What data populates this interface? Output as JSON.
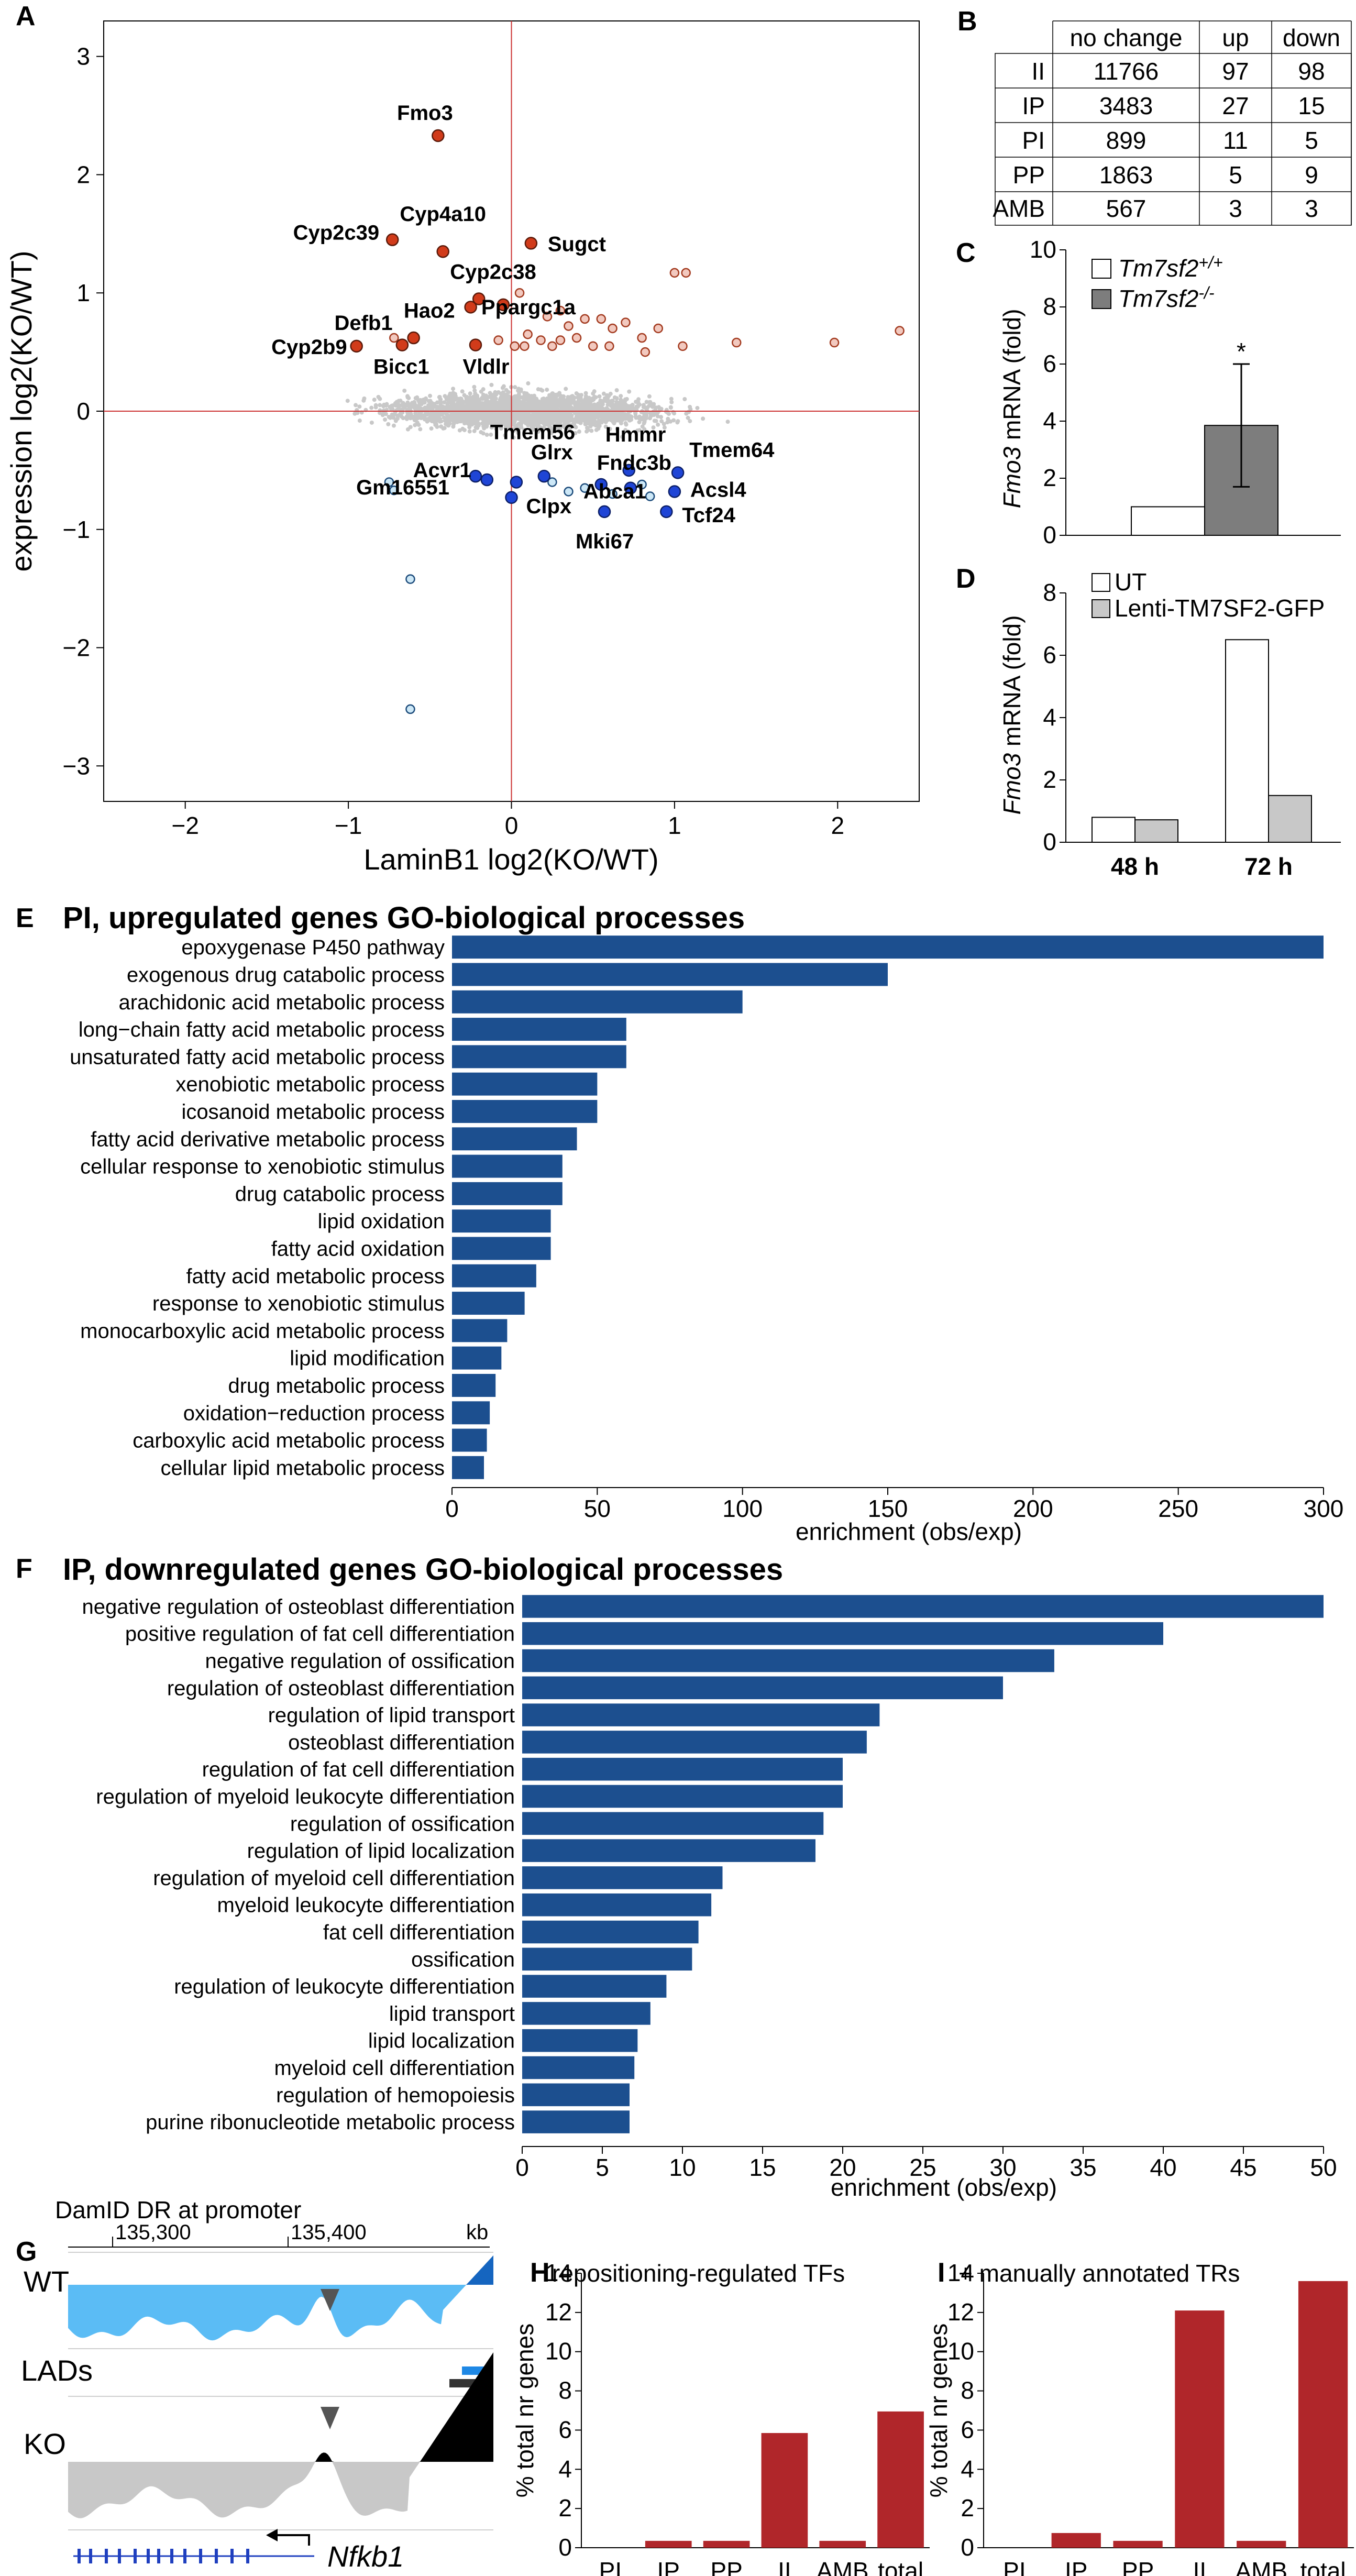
{
  "panels": {
    "A": "A",
    "B": "B",
    "C": "C",
    "D": "D",
    "E": "E",
    "F": "F",
    "G": "G",
    "H": "H",
    "I": "I"
  },
  "colors": {
    "up": "#d13b1a",
    "down": "#1f45d6",
    "background_points": "#c8c8c8",
    "axis_line": "#cc3333",
    "bar": "#1c4f8f",
    "ko_bar": "#7d7d7d",
    "lenti_bar": "#c8c8c8",
    "tr_bar": "#b0262a",
    "wt_track": "#5bbcf5",
    "ko_track": "#c8c8c8"
  },
  "chart_data": [
    {
      "id": "A",
      "type": "scatter",
      "xlabel": "LaminB1 log2(KO/WT)",
      "ylabel": "expression log2(KO/WT)",
      "xlim": [
        -2.5,
        2.5
      ],
      "ylim": [
        -3.3,
        3.3
      ],
      "xticks": [
        "−2",
        "−1",
        "0",
        "1",
        "2"
      ],
      "yticks": [
        "3",
        "2",
        "1",
        "0",
        "−1",
        "−2",
        "−3"
      ],
      "labeled_up": [
        {
          "gene": "Fmo3",
          "x": -0.45,
          "y": 2.33
        },
        {
          "gene": "Cyp2c39",
          "x": -0.73,
          "y": 1.45
        },
        {
          "gene": "Cyp4a10",
          "x": -0.42,
          "y": 1.35
        },
        {
          "gene": "Sugct",
          "x": 0.12,
          "y": 1.42
        },
        {
          "gene": "Cyp2c38",
          "x": -0.2,
          "y": 0.95
        },
        {
          "gene": "Hao2",
          "x": -0.25,
          "y": 0.88
        },
        {
          "gene": "Ppargc1a",
          "x": -0.05,
          "y": 0.9
        },
        {
          "gene": "Defb1",
          "x": -0.6,
          "y": 0.62
        },
        {
          "gene": "Cyp2b9",
          "x": -0.95,
          "y": 0.55
        },
        {
          "gene": "Bicc1",
          "x": -0.67,
          "y": 0.56
        },
        {
          "gene": "Vldlr",
          "x": -0.22,
          "y": 0.56
        }
      ],
      "other_up": [
        [
          0.05,
          1.0
        ],
        [
          0.3,
          0.85
        ],
        [
          0.22,
          0.8
        ],
        [
          0.35,
          0.72
        ],
        [
          0.45,
          0.78
        ],
        [
          0.55,
          0.78
        ],
        [
          0.62,
          0.7
        ],
        [
          0.7,
          0.75
        ],
        [
          0.8,
          0.62
        ],
        [
          0.9,
          0.7
        ],
        [
          1.0,
          1.17
        ],
        [
          1.07,
          1.17
        ],
        [
          0.18,
          0.6
        ],
        [
          0.25,
          0.55
        ],
        [
          0.5,
          0.55
        ],
        [
          0.08,
          0.55
        ],
        [
          0.1,
          0.65
        ],
        [
          0.4,
          0.62
        ],
        [
          0.6,
          0.55
        ],
        [
          0.82,
          0.5
        ],
        [
          1.05,
          0.55
        ],
        [
          1.38,
          0.58
        ],
        [
          1.98,
          0.58
        ],
        [
          2.38,
          0.68
        ],
        [
          -0.08,
          0.6
        ],
        [
          0.02,
          0.55
        ],
        [
          0.3,
          0.6
        ],
        [
          -0.72,
          0.62
        ]
      ],
      "labeled_down": [
        {
          "gene": "Tmem56",
          "x": 0.03,
          "y": -0.6
        },
        {
          "gene": "Hmmr",
          "x": 0.72,
          "y": -0.5
        },
        {
          "gene": "Glrx",
          "x": 0.2,
          "y": -0.55
        },
        {
          "gene": "Fndc3b",
          "x": 0.55,
          "y": -0.62
        },
        {
          "gene": "Tmem64",
          "x": 1.02,
          "y": -0.52
        },
        {
          "gene": "Abca1",
          "x": 0.73,
          "y": -0.65
        },
        {
          "gene": "Acvr1",
          "x": -0.15,
          "y": -0.58
        },
        {
          "gene": "Clpx",
          "x": 0.0,
          "y": -0.73
        },
        {
          "gene": "Acsl4",
          "x": 1.0,
          "y": -0.68
        },
        {
          "gene": "Gm16551",
          "x": -0.22,
          "y": -0.55
        },
        {
          "gene": "Mki67",
          "x": 0.57,
          "y": -0.85
        },
        {
          "gene": "Tcf24",
          "x": 0.95,
          "y": -0.85
        }
      ],
      "other_down": [
        [
          0.25,
          -0.6
        ],
        [
          0.35,
          -0.68
        ],
        [
          0.45,
          -0.65
        ],
        [
          0.8,
          -0.62
        ],
        [
          0.85,
          -0.72
        ],
        [
          0.62,
          -0.7
        ],
        [
          -0.75,
          -0.6
        ],
        [
          -0.72,
          -0.67
        ],
        [
          -0.62,
          -1.42
        ],
        [
          -0.62,
          -2.52
        ]
      ]
    },
    {
      "id": "C",
      "type": "bar",
      "categories": [
        "Tm7sf2+/+",
        "Tm7sf2-/-"
      ],
      "legend": [
        {
          "base": "Tm7sf2",
          "sup": "+/+"
        },
        {
          "base": "Tm7sf2",
          "sup": "-/-"
        }
      ],
      "values": [
        1.0,
        3.85
      ],
      "error": [
        0,
        2.15
      ],
      "significance": "*",
      "ylabel_gene": "Fmo3",
      "ylabel_rest": " mRNA (fold)",
      "ylim": [
        0,
        10
      ],
      "yticks": [
        "0",
        "2",
        "4",
        "6",
        "8",
        "10"
      ]
    },
    {
      "id": "D",
      "type": "bar",
      "categories": [
        "48 h",
        "72 h"
      ],
      "series": [
        {
          "name": "UT",
          "values": [
            0.8,
            6.5
          ]
        },
        {
          "name": "Lenti-TM7SF2-GFP",
          "values": [
            0.72,
            1.5
          ]
        }
      ],
      "ylabel_gene": "Fmo3",
      "ylabel_rest": " mRNA (fold)",
      "ylim": [
        0,
        8
      ],
      "yticks": [
        "0",
        "2",
        "4",
        "6",
        "8"
      ]
    },
    {
      "id": "E",
      "type": "bar",
      "title": "PI, upregulated genes GO-biological processes",
      "xlabel": "enrichment (obs/exp)",
      "xlim": [
        0,
        300
      ],
      "xticks": [
        "0",
        "50",
        "100",
        "150",
        "200",
        "250",
        "300"
      ],
      "categories": [
        "epoxygenase P450 pathway",
        "exogenous drug catabolic process",
        "arachidonic acid metabolic process",
        "long−chain fatty acid metabolic process",
        "unsaturated fatty acid metabolic process",
        "xenobiotic metabolic process",
        "icosanoid metabolic process",
        "fatty acid derivative metabolic process",
        "cellular response to xenobiotic stimulus",
        "drug catabolic process",
        "lipid oxidation",
        "fatty acid oxidation",
        "fatty acid metabolic process",
        "response to xenobiotic stimulus",
        "monocarboxylic acid metabolic process",
        "lipid modification",
        "drug metabolic process",
        "oxidation−reduction process",
        "carboxylic acid metabolic process",
        "cellular lipid metabolic process"
      ],
      "values": [
        300,
        150,
        100,
        60,
        60,
        50,
        50,
        43,
        38,
        38,
        34,
        34,
        29,
        25,
        19,
        17,
        15,
        13,
        12,
        11
      ]
    },
    {
      "id": "F",
      "type": "bar",
      "title": "IP, downregulated genes GO-biological processes",
      "xlabel": "enrichment (obs/exp)",
      "xlim": [
        0,
        50
      ],
      "xticks": [
        "0",
        "5",
        "10",
        "15",
        "20",
        "25",
        "30",
        "35",
        "40",
        "45",
        "50"
      ],
      "categories": [
        "negative regulation of osteoblast differentiation",
        "positive regulation of fat cell differentiation",
        "negative regulation of ossification",
        "regulation of osteoblast differentiation",
        "regulation of lipid transport",
        "osteoblast differentiation",
        "regulation of fat cell differentiation",
        "regulation of myeloid leukocyte differentiation",
        "regulation of ossification",
        "regulation of lipid localization",
        "regulation of myeloid cell differentiation",
        "myeloid leukocyte differentiation",
        "fat cell differentiation",
        "ossification",
        "regulation of leukocyte differentiation",
        "lipid transport",
        "lipid localization",
        "myeloid cell differentiation",
        "regulation of hemopoiesis",
        "purine ribonucleotide metabolic process"
      ],
      "values": [
        50,
        40,
        33.2,
        30,
        22.3,
        21.5,
        20,
        20,
        18.8,
        18.3,
        12.5,
        11.8,
        11,
        10.6,
        9,
        8,
        7.2,
        7,
        6.7,
        6.7
      ]
    },
    {
      "id": "H",
      "type": "bar",
      "title": "repositioning-regulated TFs",
      "ylabel": "% total nr genes",
      "ylim": [
        0,
        14
      ],
      "yticks": [
        "0",
        "2",
        "4",
        "6",
        "8",
        "10",
        "12",
        "14"
      ],
      "categories": [
        "PI",
        "IP",
        "PP",
        "II",
        "AMB",
        "total"
      ],
      "values": [
        0,
        0.35,
        0.35,
        5.85,
        0.35,
        6.95
      ]
    },
    {
      "id": "I",
      "type": "bar",
      "title": "+ manually annotated TRs",
      "ylabel": "% total nr genes",
      "ylim": [
        0,
        14
      ],
      "yticks": [
        "0",
        "2",
        "4",
        "6",
        "8",
        "10",
        "12",
        "14"
      ],
      "categories": [
        "PI",
        "IP",
        "PP",
        "II",
        "AMB",
        "total"
      ],
      "values": [
        0,
        0.75,
        0.35,
        12.1,
        0.35,
        13.6
      ]
    }
  ],
  "table_B": {
    "headers": [
      "no change",
      "up",
      "down"
    ],
    "rows": [
      {
        "label": "II",
        "values": [
          "11766",
          "97",
          "98"
        ]
      },
      {
        "label": "IP",
        "values": [
          "3483",
          "27",
          "15"
        ]
      },
      {
        "label": "PI",
        "values": [
          "899",
          "11",
          "5"
        ]
      },
      {
        "label": "PP",
        "values": [
          "1863",
          "5",
          "9"
        ]
      },
      {
        "label": "AMB",
        "values": [
          "567",
          "3",
          "3"
        ]
      }
    ]
  },
  "panel_G": {
    "title": "DamID DR at promoter",
    "coord_left": "135,300",
    "coord_right": "135,400",
    "unit": "kb",
    "wt_label": "WT",
    "lads_label": "LADs",
    "ko_label": "KO",
    "gene": "Nfkb1"
  }
}
